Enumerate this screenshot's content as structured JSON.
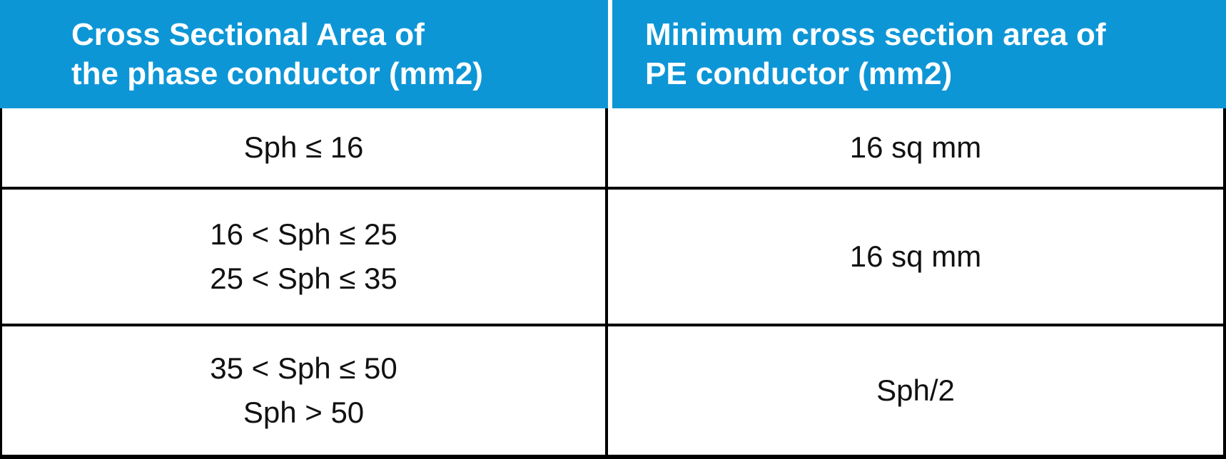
{
  "colors": {
    "header_bg": "#0D96D6",
    "header_text": "#ffffff",
    "body_text": "#111111",
    "border": "#000000"
  },
  "table": {
    "columns": [
      {
        "header_line1": "Cross Sectional Area of",
        "header_line2": "the phase conductor (mm2)"
      },
      {
        "header_line1": "Minimum cross section area of",
        "header_line2": "PE conductor (mm2)"
      }
    ],
    "rows": [
      {
        "phase_lines": [
          "Sph ≤ 16"
        ],
        "pe": "16 sq mm"
      },
      {
        "phase_lines": [
          "16 < Sph ≤ 25",
          "25 < Sph ≤ 35"
        ],
        "pe": "16 sq mm"
      },
      {
        "phase_lines": [
          "35 < Sph ≤ 50",
          "Sph > 50"
        ],
        "pe": "Sph/2"
      }
    ]
  }
}
